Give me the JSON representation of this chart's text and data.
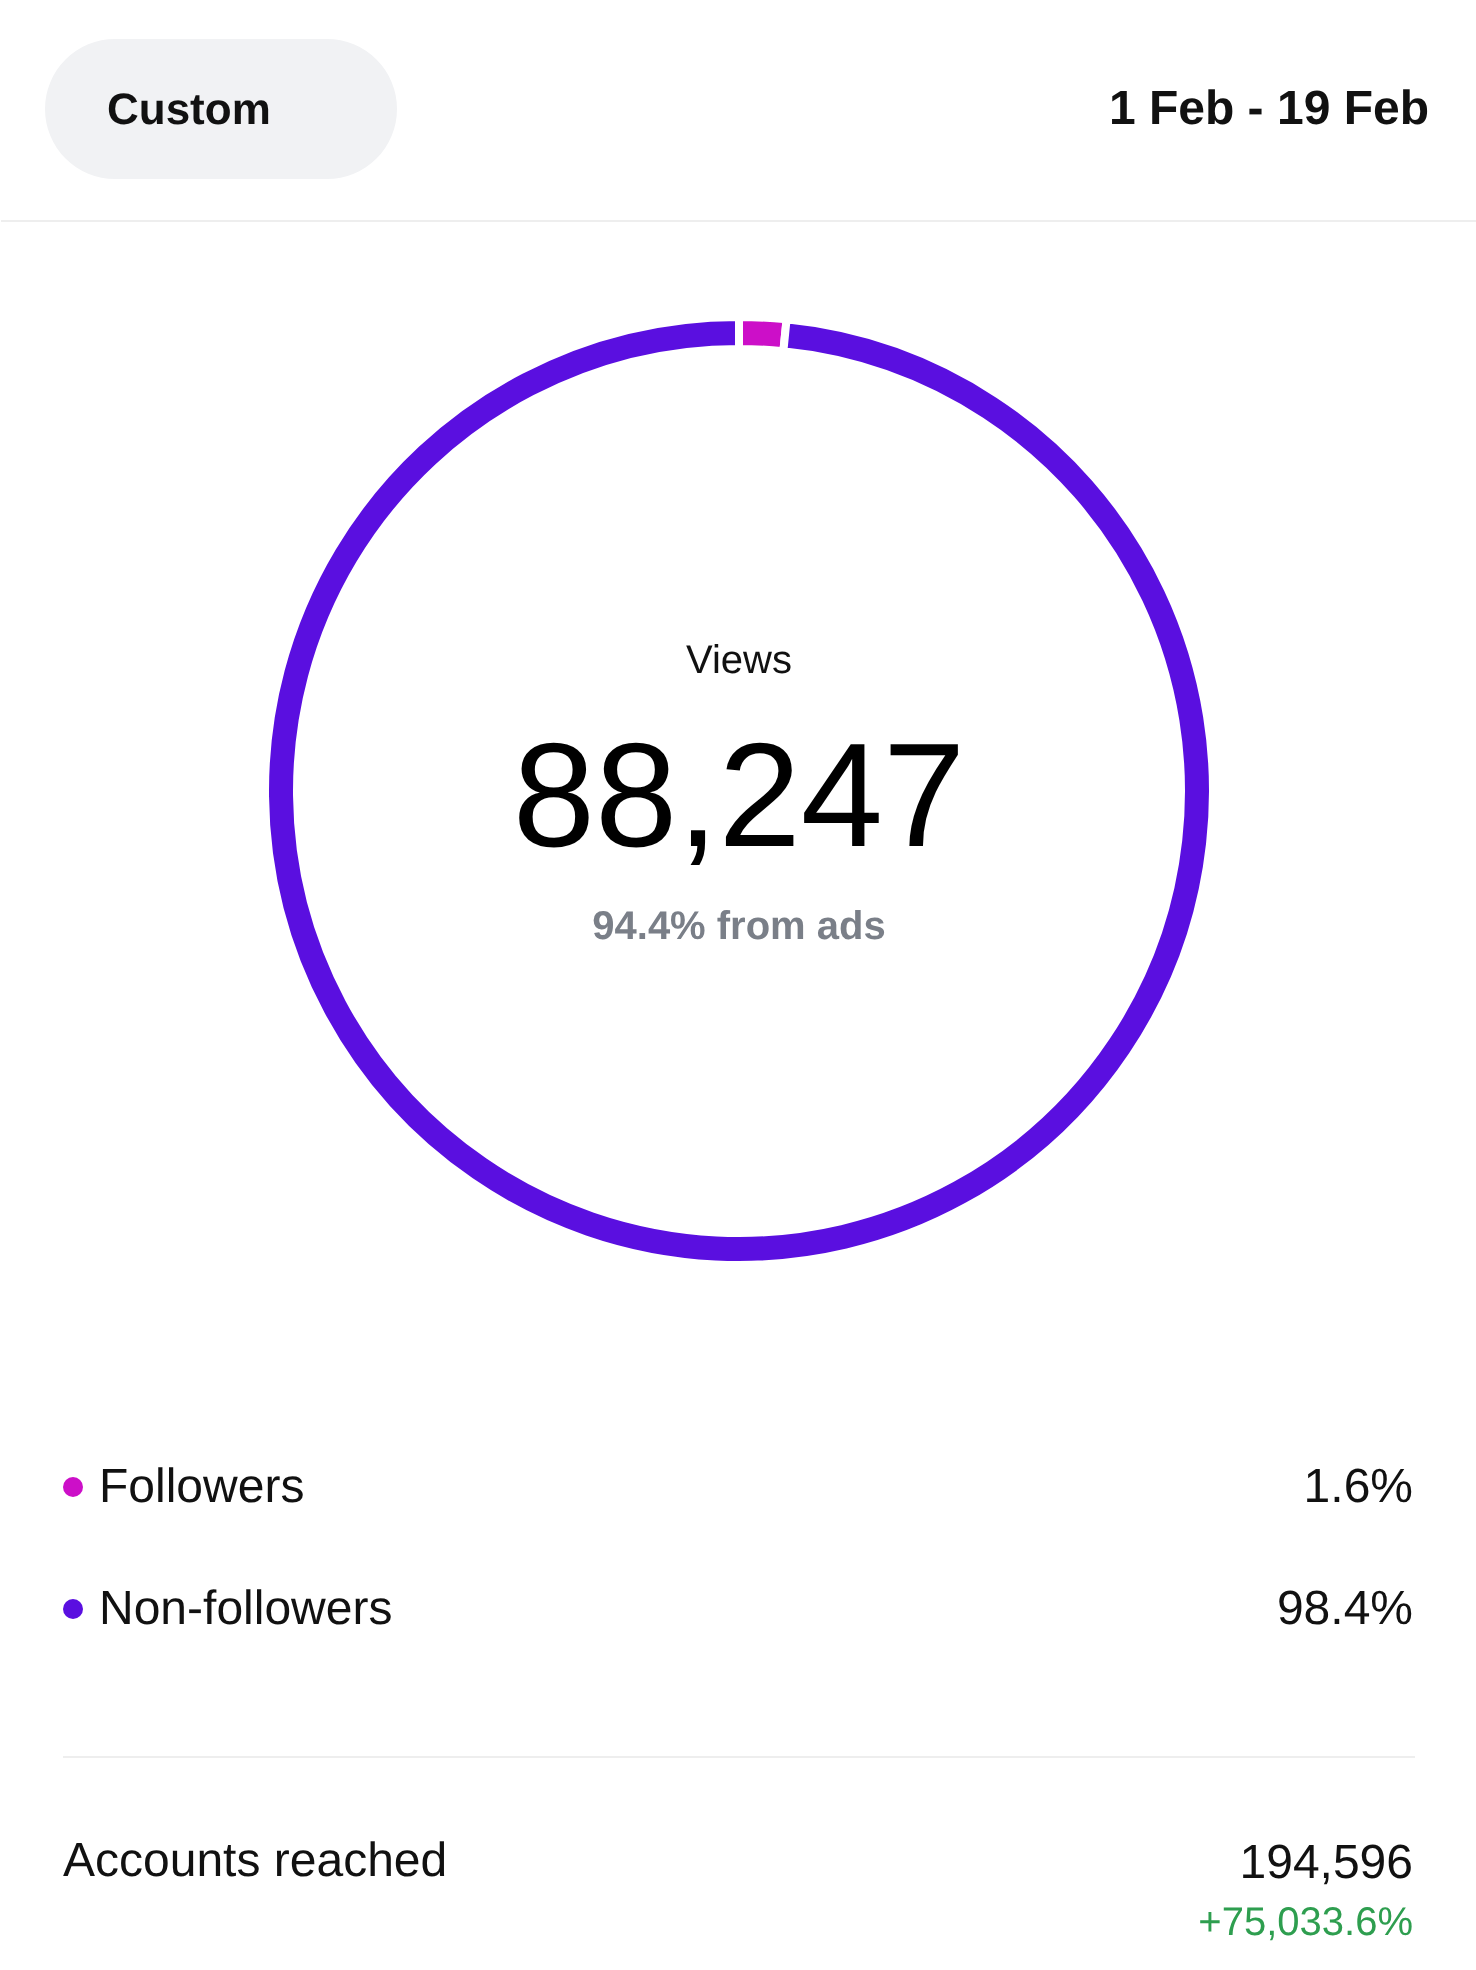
{
  "chart_data": {
    "type": "donut",
    "title": "Views",
    "subtitle": "1 Feb - 19 Feb",
    "categories": [
      "Followers",
      "Non-followers"
    ],
    "values": [
      1.6,
      98.4
    ],
    "colors": [
      "#cc0fc8",
      "#5a0fe0"
    ],
    "value_labels": [
      "1.6%",
      "98.4%"
    ],
    "legend": "bottom",
    "annotations": [
      "Custom",
      "88,247",
      "94.4% from ads",
      "Accounts reached",
      "194,596",
      "+75,033.6%"
    ]
  }
}
